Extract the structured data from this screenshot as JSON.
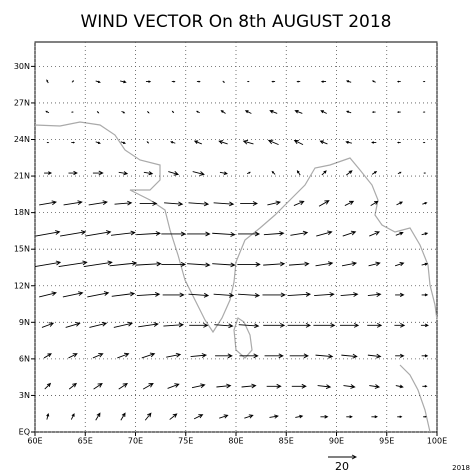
{
  "chart_data": {
    "type": "quiver",
    "title": "WIND VECTOR On 8th AUGUST 2018",
    "xlim": [
      60,
      100
    ],
    "ylim": [
      0,
      32
    ],
    "xticks": [
      {
        "value": 60,
        "label": "60E"
      },
      {
        "value": 65,
        "label": "65E"
      },
      {
        "value": 70,
        "label": "70E"
      },
      {
        "value": 75,
        "label": "75E"
      },
      {
        "value": 80,
        "label": "80E"
      },
      {
        "value": 85,
        "label": "85E"
      },
      {
        "value": 90,
        "label": "90E"
      },
      {
        "value": 95,
        "label": "95E"
      },
      {
        "value": 100,
        "label": "100E"
      }
    ],
    "yticks": [
      {
        "value": 0,
        "label": "EQ"
      },
      {
        "value": 3,
        "label": "3N"
      },
      {
        "value": 6,
        "label": "6N"
      },
      {
        "value": 9,
        "label": "9N"
      },
      {
        "value": 12,
        "label": "12N"
      },
      {
        "value": 15,
        "label": "15N"
      },
      {
        "value": 18,
        "label": "18N"
      },
      {
        "value": 21,
        "label": "21N"
      },
      {
        "value": 24,
        "label": "24N"
      },
      {
        "value": 27,
        "label": "27N"
      },
      {
        "value": 30,
        "label": "30N"
      }
    ],
    "grid": true,
    "color": "#000000",
    "coast_color": "#aaaaaa",
    "reference_vector": 20,
    "corner_label": "2018",
    "vectors": {
      "lon": [
        61.25,
        63.75,
        66.25,
        68.75,
        71.25,
        73.75,
        76.25,
        78.75,
        81.25,
        83.75,
        86.25,
        88.75,
        91.25,
        93.75,
        96.25,
        98.75
      ],
      "lat": [
        1.25,
        3.75,
        6.25,
        8.75,
        11.25,
        13.75,
        16.25,
        18.75,
        21.25,
        23.75,
        26.25,
        28.75
      ],
      "u": [
        [
          1,
          2,
          3,
          3,
          4,
          5,
          6,
          6,
          6,
          6,
          5,
          5,
          4,
          4,
          3,
          2
        ],
        [
          4,
          5,
          6,
          6,
          7,
          8,
          9,
          10,
          10,
          10,
          10,
          9,
          8,
          7,
          5,
          3
        ],
        [
          5,
          6,
          7,
          8,
          9,
          10,
          11,
          12,
          13,
          13,
          13,
          12,
          11,
          9,
          6,
          4
        ],
        [
          8,
          10,
          12,
          13,
          14,
          14,
          13,
          13,
          14,
          15,
          16,
          15,
          13,
          10,
          7,
          5
        ],
        [
          12,
          14,
          15,
          16,
          16,
          15,
          14,
          14,
          15,
          16,
          16,
          14,
          12,
          9,
          6,
          4
        ],
        [
          18,
          20,
          20,
          19,
          18,
          17,
          16,
          16,
          16,
          15,
          14,
          12,
          10,
          8,
          6,
          4
        ],
        [
          17,
          18,
          18,
          17,
          17,
          17,
          16,
          16,
          15,
          14,
          12,
          11,
          9,
          7,
          5,
          4
        ],
        [
          12,
          13,
          13,
          12,
          12,
          13,
          14,
          14,
          12,
          9,
          7,
          7,
          6,
          5,
          4,
          3
        ],
        [
          5,
          6,
          7,
          6,
          6,
          7,
          8,
          5,
          2,
          -2,
          -2,
          3,
          4,
          3,
          2,
          1
        ],
        [
          1,
          2,
          3,
          3,
          -1,
          -3,
          -5,
          -6,
          -7,
          -7,
          -6,
          -5,
          -4,
          -3,
          -2,
          -1
        ],
        [
          -2,
          -1,
          1,
          2,
          1,
          -1,
          -2,
          -3,
          -4,
          -5,
          -5,
          -4,
          -3,
          -2,
          -2,
          -1
        ],
        [
          -1,
          1,
          3,
          4,
          3,
          2,
          2,
          1,
          -1,
          -2,
          -2,
          -3,
          -3,
          -2,
          -2,
          -1
        ]
      ],
      "v": [
        [
          4,
          4,
          5,
          5,
          5,
          4,
          3,
          2,
          2,
          1,
          1,
          0,
          0,
          0,
          0,
          0
        ],
        [
          4,
          4,
          4,
          4,
          4,
          3,
          2,
          1,
          1,
          0,
          0,
          -1,
          -1,
          -1,
          -1,
          0
        ],
        [
          3,
          3,
          3,
          3,
          3,
          2,
          1,
          0,
          0,
          0,
          0,
          -1,
          -1,
          -1,
          0,
          0
        ],
        [
          3,
          3,
          3,
          3,
          2,
          1,
          0,
          -1,
          -1,
          0,
          0,
          0,
          0,
          0,
          0,
          0
        ],
        [
          3,
          3,
          3,
          2,
          1,
          0,
          -1,
          -1,
          -1,
          0,
          1,
          1,
          1,
          1,
          0,
          0
        ],
        [
          3,
          3,
          3,
          2,
          1,
          0,
          -1,
          -1,
          0,
          1,
          1,
          2,
          2,
          2,
          2,
          1
        ],
        [
          3,
          3,
          3,
          2,
          1,
          0,
          0,
          -1,
          0,
          1,
          2,
          3,
          3,
          3,
          2,
          1
        ],
        [
          2,
          2,
          2,
          1,
          0,
          -1,
          -1,
          -1,
          0,
          2,
          3,
          4,
          3,
          3,
          2,
          1
        ],
        [
          0,
          0,
          0,
          -1,
          -1,
          -2,
          -2,
          -1,
          1,
          2,
          3,
          3,
          3,
          2,
          1,
          0
        ],
        [
          0,
          0,
          -1,
          -1,
          1,
          1,
          2,
          2,
          2,
          3,
          3,
          2,
          1,
          0,
          0,
          0
        ],
        [
          1,
          0,
          -1,
          -1,
          -1,
          1,
          1,
          2,
          2,
          2,
          2,
          2,
          1,
          0,
          0,
          0
        ],
        [
          2,
          1,
          -1,
          -1,
          0,
          0,
          0,
          -1,
          0,
          0,
          0,
          0,
          1,
          1,
          0,
          0
        ]
      ]
    }
  }
}
